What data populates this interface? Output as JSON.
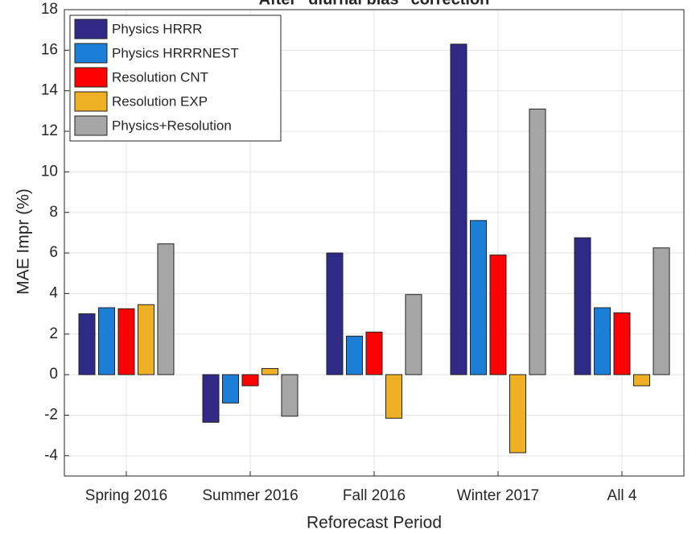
{
  "chart_data": {
    "type": "bar",
    "title": "After \"diurnal bias\" correction",
    "x_label": "Reforecast Period",
    "y_label": "MAE Impr (%)",
    "categories": [
      "Spring 2016",
      "Summer 2016",
      "Fall 2016",
      "Winter 2017",
      "All 4"
    ],
    "series": [
      {
        "name": "Physics HRRR",
        "color": "#2e2a85",
        "values": [
          3.0,
          -2.35,
          6.0,
          16.3,
          6.75
        ]
      },
      {
        "name": "Physics HRRRNEST",
        "color": "#1b7fd8",
        "values": [
          3.3,
          -1.4,
          1.9,
          7.6,
          3.3
        ]
      },
      {
        "name": "Resolution CNT",
        "color": "#ff0000",
        "values": [
          3.25,
          -0.55,
          2.1,
          5.9,
          3.05
        ]
      },
      {
        "name": "Resolution EXP",
        "color": "#efb025",
        "values": [
          3.45,
          0.3,
          -2.15,
          -3.85,
          -0.55
        ]
      },
      {
        "name": "Physics+Resolution",
        "color": "#a6a6a6",
        "values": [
          6.45,
          -2.05,
          3.95,
          13.1,
          6.25
        ]
      }
    ],
    "ylim": [
      -5,
      18
    ],
    "yticks": [
      -4,
      -2,
      0,
      2,
      4,
      6,
      8,
      10,
      12,
      14,
      16,
      18
    ],
    "grid": true,
    "legend": "top-left"
  }
}
